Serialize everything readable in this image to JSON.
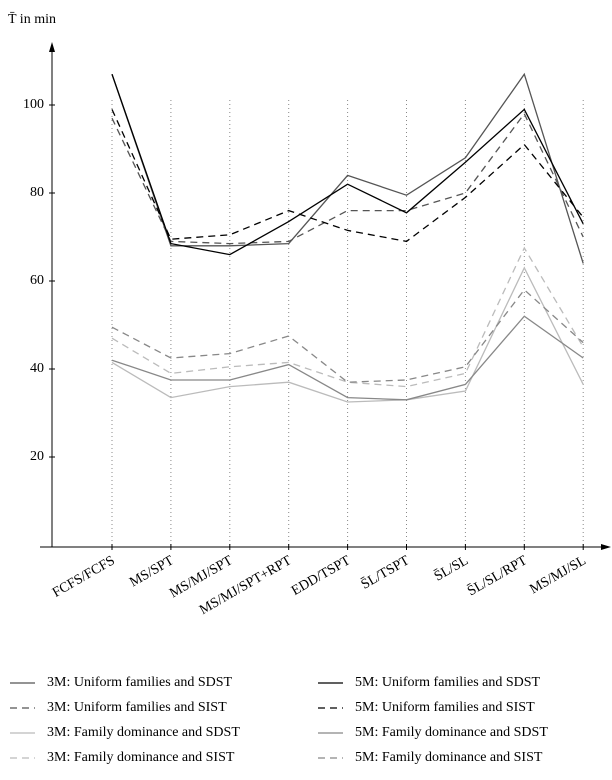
{
  "chart_data": {
    "type": "line",
    "y_label": "T̄ in min",
    "categories": [
      "FCFS/FCFS",
      "MS/SPT",
      "MS/MJ/SPT",
      "MS/MJ/SPT+RPT",
      "EDD/TSPT",
      "S̄L/TSPT",
      "S̄L/SL",
      "S̄L/SL/RPT",
      "MS/MJ/SL"
    ],
    "ylim": [
      0,
      110
    ],
    "yticks": [
      20,
      40,
      60,
      80,
      100
    ],
    "grid": true,
    "series": [
      {
        "name": "3M: Uniform families and SDST",
        "color": "#555555",
        "dash": false,
        "values": [
          107,
          68,
          68,
          68.5,
          84,
          79.5,
          88,
          107,
          64
        ]
      },
      {
        "name": "3M: Uniform families and SIST",
        "color": "#555555",
        "dash": true,
        "values": [
          97,
          69,
          68.5,
          69,
          76,
          76,
          80,
          98,
          70
        ]
      },
      {
        "name": "3M: Family dominance and SDST",
        "color": "#bbbbbb",
        "dash": false,
        "values": [
          41.5,
          33.5,
          36,
          37,
          32.5,
          33,
          35,
          63,
          36.5
        ]
      },
      {
        "name": "3M: Family dominance and SIST",
        "color": "#bbbbbb",
        "dash": true,
        "values": [
          47,
          39,
          40.5,
          41.5,
          37,
          36,
          39,
          67.5,
          45
        ]
      },
      {
        "name": "5M: Uniform families and SDST",
        "color": "#000000",
        "dash": false,
        "values": [
          107,
          68.5,
          66,
          73.5,
          82,
          75.5,
          87,
          99,
          73
        ]
      },
      {
        "name": "5M: Uniform families and SIST",
        "color": "#000000",
        "dash": true,
        "values": [
          99,
          69.5,
          70.5,
          76,
          71.5,
          69,
          79,
          91,
          74.5
        ]
      },
      {
        "name": "5M: Family dominance and SDST",
        "color": "#888888",
        "dash": false,
        "values": [
          42,
          37.5,
          37.5,
          41,
          33.5,
          33,
          36.5,
          52,
          42.5
        ]
      },
      {
        "name": "5M: Family dominance and SIST",
        "color": "#888888",
        "dash": true,
        "values": [
          49.5,
          42.5,
          43.5,
          47.5,
          37,
          37.5,
          40.5,
          58,
          46
        ]
      }
    ]
  }
}
